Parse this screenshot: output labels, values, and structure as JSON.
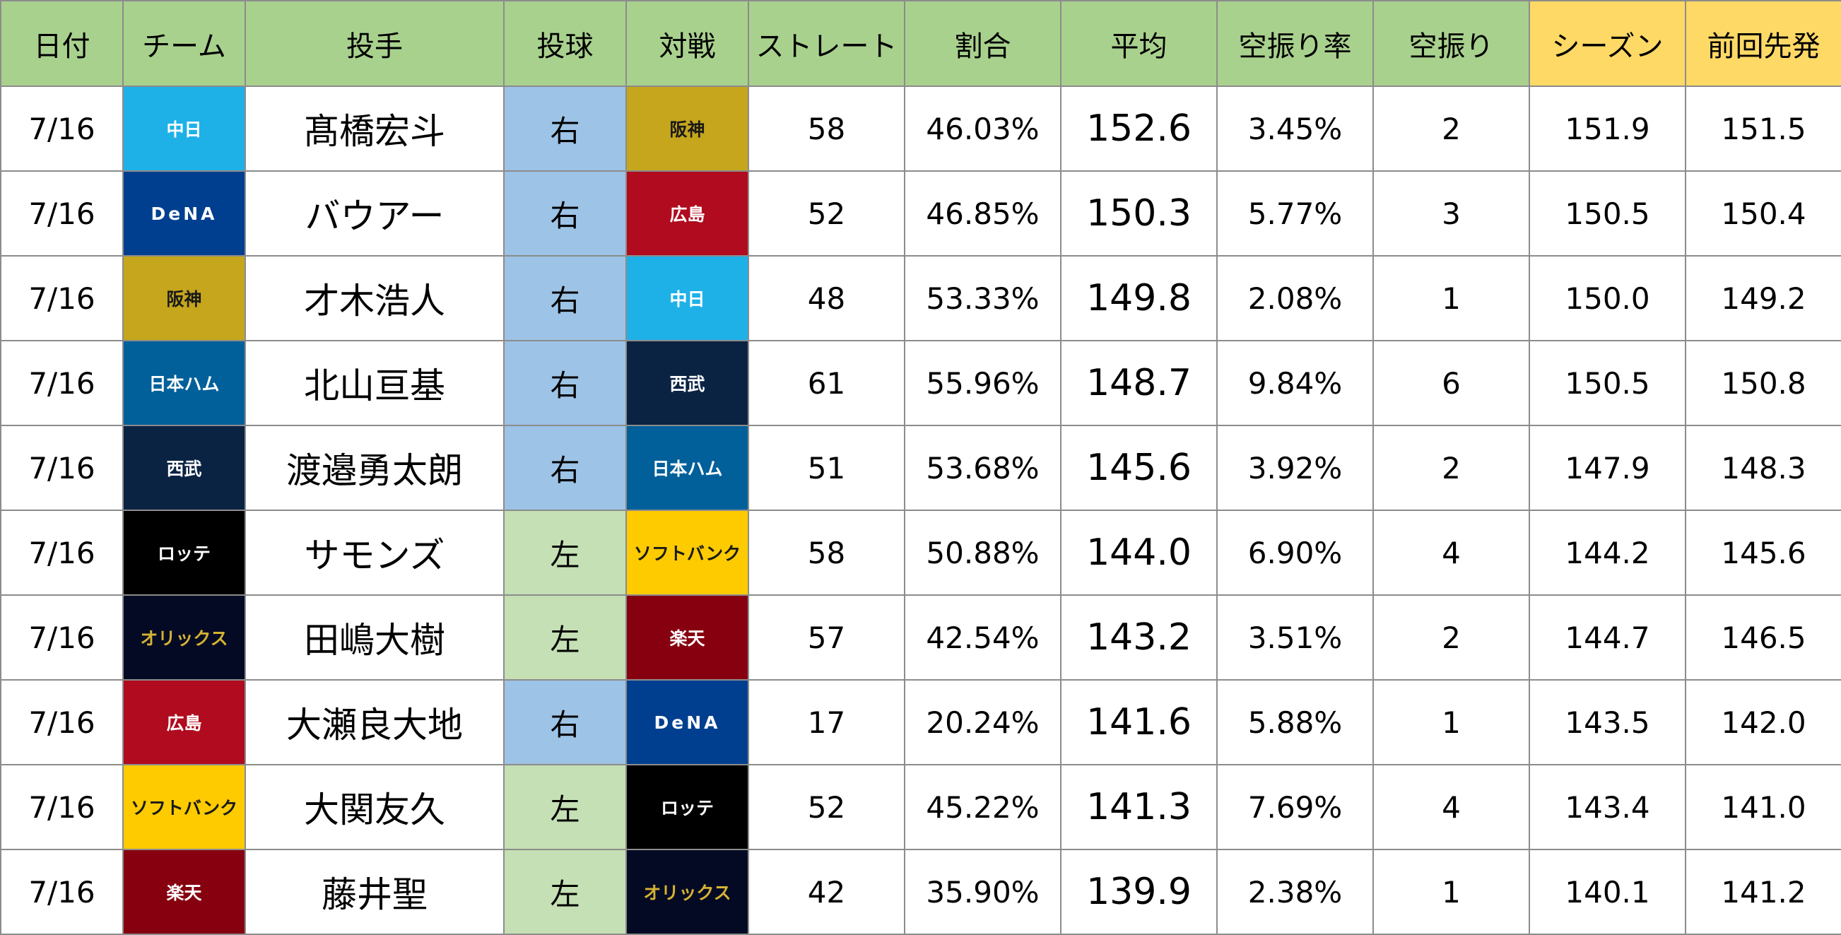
{
  "headers": [
    "日付",
    "チーム",
    "投手",
    "投球",
    "対戦",
    "ストレート",
    "割合",
    "平均",
    "空振り率",
    "空振り",
    "シーズン",
    "前回先発"
  ],
  "header_colors": {
    "default": "#a9d18e",
    "highlight": "#ffd966"
  },
  "team_colors": {
    "中日": {
      "bg": "#1eb1e8",
      "fg": "#ffffff"
    },
    "DeNA": {
      "bg": "#003f8f",
      "fg": "#ffffff"
    },
    "阪神": {
      "bg": "#c5a61c",
      "fg": "#1a1a1a"
    },
    "広島": {
      "bg": "#b00b1e",
      "fg": "#ffffff"
    },
    "日本ハム": {
      "bg": "#01609a",
      "fg": "#ffffff"
    },
    "西武": {
      "bg": "#0b2343",
      "fg": "#ffffff"
    },
    "ロッテ": {
      "bg": "#000000",
      "fg": "#ffffff"
    },
    "ソフトバンク": {
      "bg": "#fdcb00",
      "fg": "#1a1a1a"
    },
    "オリックス": {
      "bg": "#050a24",
      "fg": "#d4b233"
    },
    "楽天": {
      "bg": "#860010",
      "fg": "#ffffff"
    }
  },
  "hand_colors": {
    "右": "#9dc3e6",
    "左": "#c5e0b4"
  },
  "rows": [
    {
      "date": "7/16",
      "team": "中日",
      "pitcher": "髙橋宏斗",
      "hand": "右",
      "opponent": "阪神",
      "straight": "58",
      "ratio": "46.03%",
      "avg": "152.6",
      "whiff_rate": "3.45%",
      "whiffs": "2",
      "season": "151.9",
      "last_start": "151.5"
    },
    {
      "date": "7/16",
      "team": "DeNA",
      "pitcher": "バウアー",
      "hand": "右",
      "opponent": "広島",
      "straight": "52",
      "ratio": "46.85%",
      "avg": "150.3",
      "whiff_rate": "5.77%",
      "whiffs": "3",
      "season": "150.5",
      "last_start": "150.4"
    },
    {
      "date": "7/16",
      "team": "阪神",
      "pitcher": "才木浩人",
      "hand": "右",
      "opponent": "中日",
      "straight": "48",
      "ratio": "53.33%",
      "avg": "149.8",
      "whiff_rate": "2.08%",
      "whiffs": "1",
      "season": "150.0",
      "last_start": "149.2"
    },
    {
      "date": "7/16",
      "team": "日本ハム",
      "pitcher": "北山亘基",
      "hand": "右",
      "opponent": "西武",
      "straight": "61",
      "ratio": "55.96%",
      "avg": "148.7",
      "whiff_rate": "9.84%",
      "whiffs": "6",
      "season": "150.5",
      "last_start": "150.8"
    },
    {
      "date": "7/16",
      "team": "西武",
      "pitcher": "渡邉勇太朗",
      "hand": "右",
      "opponent": "日本ハム",
      "straight": "51",
      "ratio": "53.68%",
      "avg": "145.6",
      "whiff_rate": "3.92%",
      "whiffs": "2",
      "season": "147.9",
      "last_start": "148.3"
    },
    {
      "date": "7/16",
      "team": "ロッテ",
      "pitcher": "サモンズ",
      "hand": "左",
      "opponent": "ソフトバンク",
      "straight": "58",
      "ratio": "50.88%",
      "avg": "144.0",
      "whiff_rate": "6.90%",
      "whiffs": "4",
      "season": "144.2",
      "last_start": "145.6"
    },
    {
      "date": "7/16",
      "team": "オリックス",
      "pitcher": "田嶋大樹",
      "hand": "左",
      "opponent": "楽天",
      "straight": "57",
      "ratio": "42.54%",
      "avg": "143.2",
      "whiff_rate": "3.51%",
      "whiffs": "2",
      "season": "144.7",
      "last_start": "146.5"
    },
    {
      "date": "7/16",
      "team": "広島",
      "pitcher": "大瀬良大地",
      "hand": "右",
      "opponent": "DeNA",
      "straight": "17",
      "ratio": "20.24%",
      "avg": "141.6",
      "whiff_rate": "5.88%",
      "whiffs": "1",
      "season": "143.5",
      "last_start": "142.0"
    },
    {
      "date": "7/16",
      "team": "ソフトバンク",
      "pitcher": "大関友久",
      "hand": "左",
      "opponent": "ロッテ",
      "straight": "52",
      "ratio": "45.22%",
      "avg": "141.3",
      "whiff_rate": "7.69%",
      "whiffs": "4",
      "season": "143.4",
      "last_start": "141.0"
    },
    {
      "date": "7/16",
      "team": "楽天",
      "pitcher": "藤井聖",
      "hand": "左",
      "opponent": "オリックス",
      "straight": "42",
      "ratio": "35.90%",
      "avg": "139.9",
      "whiff_rate": "2.38%",
      "whiffs": "1",
      "season": "140.1",
      "last_start": "141.2"
    }
  ]
}
